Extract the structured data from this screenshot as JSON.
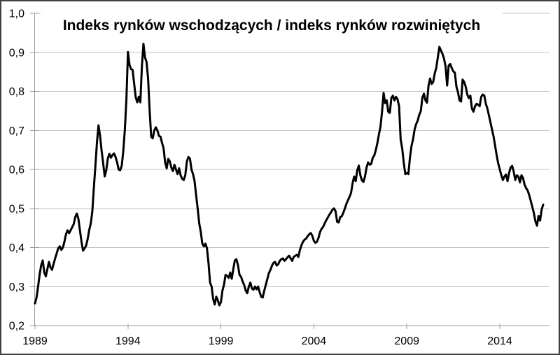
{
  "chart_data": {
    "type": "line",
    "title": "Indeks rynków wschodzących / indeks rynków rozwiniętych",
    "xlabel": "",
    "ylabel": "",
    "ylim": [
      0.2,
      1.0
    ],
    "grid": true,
    "legend": false,
    "y_ticks": [
      {
        "label": "0,2",
        "value": 0.2
      },
      {
        "label": "0,3",
        "value": 0.3
      },
      {
        "label": "0,4",
        "value": 0.4
      },
      {
        "label": "0,5",
        "value": 0.5
      },
      {
        "label": "0,6",
        "value": 0.6
      },
      {
        "label": "0,7",
        "value": 0.7
      },
      {
        "label": "0,8",
        "value": 0.8
      },
      {
        "label": "0,9",
        "value": 0.9
      },
      {
        "label": "1,0",
        "value": 1.0
      }
    ],
    "x_ticks": [
      {
        "label": "1989",
        "year": 1989
      },
      {
        "label": "1994",
        "year": 1994
      },
      {
        "label": "1999",
        "year": 1999
      },
      {
        "label": "2004",
        "year": 2004
      },
      {
        "label": "2009",
        "year": 2009
      },
      {
        "label": "2014",
        "year": 2014
      }
    ],
    "colors": {
      "line": "#000000",
      "grid": "#c3c3c3",
      "axis": "#9c9c9c",
      "text": "#000000",
      "background": "#ffffff",
      "frame_border": "#424242"
    },
    "series": {
      "frequency": "monthly",
      "start_year": 1989,
      "points_per_year": 12,
      "values": [
        0.257,
        0.272,
        0.3,
        0.331,
        0.355,
        0.367,
        0.336,
        0.326,
        0.345,
        0.363,
        0.349,
        0.343,
        0.358,
        0.372,
        0.385,
        0.398,
        0.403,
        0.394,
        0.4,
        0.415,
        0.434,
        0.444,
        0.437,
        0.444,
        0.452,
        0.46,
        0.478,
        0.487,
        0.474,
        0.444,
        0.415,
        0.392,
        0.398,
        0.405,
        0.422,
        0.445,
        0.462,
        0.492,
        0.554,
        0.61,
        0.67,
        0.713,
        0.686,
        0.648,
        0.616,
        0.582,
        0.598,
        0.628,
        0.64,
        0.63,
        0.637,
        0.641,
        0.632,
        0.618,
        0.6,
        0.598,
        0.61,
        0.648,
        0.702,
        0.78,
        0.901,
        0.868,
        0.857,
        0.855,
        0.82,
        0.785,
        0.772,
        0.786,
        0.772,
        0.864,
        0.922,
        0.887,
        0.875,
        0.833,
        0.75,
        0.684,
        0.68,
        0.7,
        0.708,
        0.7,
        0.686,
        0.684,
        0.668,
        0.654,
        0.618,
        0.603,
        0.627,
        0.621,
        0.605,
        0.596,
        0.612,
        0.6,
        0.588,
        0.603,
        0.585,
        0.576,
        0.573,
        0.585,
        0.62,
        0.632,
        0.628,
        0.6,
        0.588,
        0.57,
        0.534,
        0.5,
        0.462,
        0.44,
        0.41,
        0.403,
        0.41,
        0.398,
        0.36,
        0.31,
        0.3,
        0.268,
        0.254,
        0.274,
        0.265,
        0.252,
        0.26,
        0.29,
        0.305,
        0.33,
        0.327,
        0.322,
        0.336,
        0.32,
        0.345,
        0.367,
        0.37,
        0.355,
        0.33,
        0.325,
        0.313,
        0.304,
        0.29,
        0.283,
        0.3,
        0.31,
        0.295,
        0.292,
        0.3,
        0.293,
        0.3,
        0.286,
        0.274,
        0.272,
        0.29,
        0.305,
        0.32,
        0.335,
        0.343,
        0.354,
        0.361,
        0.363,
        0.354,
        0.357,
        0.366,
        0.37,
        0.372,
        0.366,
        0.37,
        0.375,
        0.379,
        0.372,
        0.366,
        0.376,
        0.379,
        0.381,
        0.376,
        0.394,
        0.406,
        0.415,
        0.42,
        0.423,
        0.429,
        0.434,
        0.437,
        0.43,
        0.417,
        0.412,
        0.415,
        0.425,
        0.44,
        0.448,
        0.453,
        0.462,
        0.47,
        0.477,
        0.484,
        0.49,
        0.497,
        0.5,
        0.493,
        0.466,
        0.464,
        0.478,
        0.48,
        0.489,
        0.5,
        0.512,
        0.521,
        0.53,
        0.54,
        0.565,
        0.582,
        0.57,
        0.598,
        0.61,
        0.585,
        0.572,
        0.568,
        0.582,
        0.605,
        0.618,
        0.612,
        0.614,
        0.63,
        0.636,
        0.65,
        0.668,
        0.69,
        0.71,
        0.748,
        0.796,
        0.77,
        0.777,
        0.748,
        0.745,
        0.783,
        0.789,
        0.777,
        0.786,
        0.78,
        0.762,
        0.677,
        0.654,
        0.618,
        0.588,
        0.591,
        0.588,
        0.63,
        0.66,
        0.677,
        0.702,
        0.716,
        0.725,
        0.74,
        0.749,
        0.783,
        0.794,
        0.777,
        0.771,
        0.815,
        0.833,
        0.819,
        0.824,
        0.846,
        0.86,
        0.887,
        0.914,
        0.905,
        0.896,
        0.884,
        0.864,
        0.815,
        0.866,
        0.87,
        0.86,
        0.851,
        0.848,
        0.812,
        0.798,
        0.777,
        0.774,
        0.83,
        0.824,
        0.812,
        0.792,
        0.783,
        0.789,
        0.756,
        0.748,
        0.762,
        0.768,
        0.766,
        0.762,
        0.786,
        0.792,
        0.789,
        0.768,
        0.756,
        0.738,
        0.72,
        0.702,
        0.684,
        0.66,
        0.636,
        0.615,
        0.6,
        0.585,
        0.573,
        0.582,
        0.587,
        0.57,
        0.591,
        0.605,
        0.609,
        0.594,
        0.573,
        0.585,
        0.582,
        0.567,
        0.585,
        0.578,
        0.561,
        0.552,
        0.546,
        0.534,
        0.519,
        0.504,
        0.488,
        0.467,
        0.456,
        0.481,
        0.469,
        0.497,
        0.51
      ]
    }
  }
}
